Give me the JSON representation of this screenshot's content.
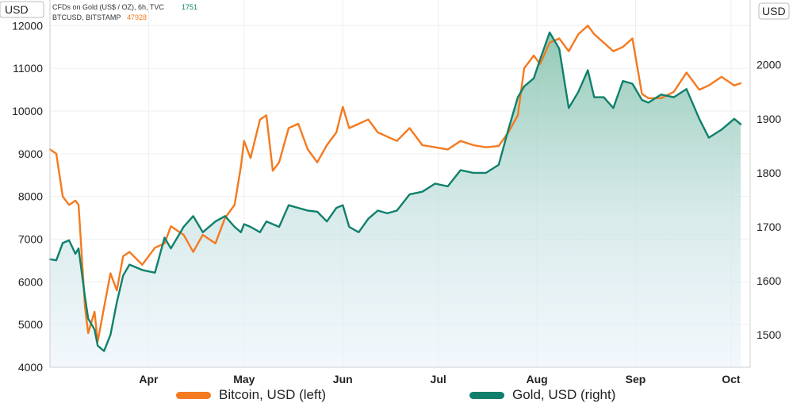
{
  "chart_data": {
    "type": "line",
    "x_unit": "date",
    "left_axis_unit": "USD",
    "right_axis_unit": "USD",
    "left_ylim": [
      4000,
      12600
    ],
    "right_ylim": [
      1440,
      2120
    ],
    "left_ticks": [
      "4000",
      "5000",
      "6000",
      "7000",
      "8000",
      "9000",
      "10000",
      "11000",
      "12000"
    ],
    "right_ticks": [
      "1500",
      "1600",
      "1700",
      "1800",
      "1900",
      "2000"
    ],
    "x_ticks": [
      "Apr",
      "May",
      "Jun",
      "Jul",
      "Aug",
      "Sep",
      "Oct"
    ],
    "header_lines": [
      {
        "label": "CFDs on Gold (US$ / OZ), 6h, TVC",
        "value": "1751"
      },
      {
        "label": "BTCUSD, BITSTAMP",
        "value": "47928"
      }
    ],
    "series": [
      {
        "name": "Bitcoin, USD (left)",
        "axis": "left",
        "color": "#f47a1f",
        "points": [
          [
            "2020-03-01",
            9100
          ],
          [
            "2020-03-03",
            9000
          ],
          [
            "2020-03-05",
            8000
          ],
          [
            "2020-03-07",
            7800
          ],
          [
            "2020-03-09",
            7900
          ],
          [
            "2020-03-10",
            7800
          ],
          [
            "2020-03-12",
            5400
          ],
          [
            "2020-03-13",
            4800
          ],
          [
            "2020-03-15",
            5300
          ],
          [
            "2020-03-16",
            4600
          ],
          [
            "2020-03-18",
            5400
          ],
          [
            "2020-03-20",
            6200
          ],
          [
            "2020-03-22",
            5800
          ],
          [
            "2020-03-24",
            6600
          ],
          [
            "2020-03-26",
            6700
          ],
          [
            "2020-03-30",
            6400
          ],
          [
            "2020-04-03",
            6800
          ],
          [
            "2020-04-06",
            6900
          ],
          [
            "2020-04-08",
            7300
          ],
          [
            "2020-04-12",
            7100
          ],
          [
            "2020-04-15",
            6700
          ],
          [
            "2020-04-18",
            7100
          ],
          [
            "2020-04-22",
            6900
          ],
          [
            "2020-04-25",
            7500
          ],
          [
            "2020-04-28",
            7800
          ],
          [
            "2020-04-30",
            8700
          ],
          [
            "2020-05-01",
            9300
          ],
          [
            "2020-05-03",
            8900
          ],
          [
            "2020-05-06",
            9800
          ],
          [
            "2020-05-08",
            9900
          ],
          [
            "2020-05-10",
            8600
          ],
          [
            "2020-05-12",
            8800
          ],
          [
            "2020-05-15",
            9600
          ],
          [
            "2020-05-18",
            9700
          ],
          [
            "2020-05-21",
            9100
          ],
          [
            "2020-05-24",
            8800
          ],
          [
            "2020-05-27",
            9200
          ],
          [
            "2020-05-30",
            9500
          ],
          [
            "2020-06-01",
            10100
          ],
          [
            "2020-06-03",
            9600
          ],
          [
            "2020-06-06",
            9700
          ],
          [
            "2020-06-09",
            9800
          ],
          [
            "2020-06-12",
            9500
          ],
          [
            "2020-06-15",
            9400
          ],
          [
            "2020-06-18",
            9300
          ],
          [
            "2020-06-22",
            9600
          ],
          [
            "2020-06-26",
            9200
          ],
          [
            "2020-06-30",
            9150
          ],
          [
            "2020-07-04",
            9100
          ],
          [
            "2020-07-08",
            9300
          ],
          [
            "2020-07-12",
            9200
          ],
          [
            "2020-07-16",
            9150
          ],
          [
            "2020-07-20",
            9180
          ],
          [
            "2020-07-23",
            9500
          ],
          [
            "2020-07-26",
            9900
          ],
          [
            "2020-07-28",
            11000
          ],
          [
            "2020-07-31",
            11300
          ],
          [
            "2020-08-02",
            11100
          ],
          [
            "2020-08-05",
            11600
          ],
          [
            "2020-08-08",
            11700
          ],
          [
            "2020-08-11",
            11400
          ],
          [
            "2020-08-14",
            11800
          ],
          [
            "2020-08-17",
            12000
          ],
          [
            "2020-08-19",
            11800
          ],
          [
            "2020-08-22",
            11600
          ],
          [
            "2020-08-25",
            11400
          ],
          [
            "2020-08-28",
            11500
          ],
          [
            "2020-08-31",
            11700
          ],
          [
            "2020-09-03",
            10400
          ],
          [
            "2020-09-05",
            10300
          ],
          [
            "2020-09-09",
            10300
          ],
          [
            "2020-09-13",
            10450
          ],
          [
            "2020-09-17",
            10900
          ],
          [
            "2020-09-21",
            10500
          ],
          [
            "2020-09-24",
            10600
          ],
          [
            "2020-09-28",
            10800
          ],
          [
            "2020-10-02",
            10600
          ],
          [
            "2020-10-04",
            10650
          ]
        ]
      },
      {
        "name": "Gold, USD (right)",
        "axis": "right",
        "color": "#10806c",
        "points": [
          [
            "2020-03-01",
            1640
          ],
          [
            "2020-03-03",
            1638
          ],
          [
            "2020-03-05",
            1670
          ],
          [
            "2020-03-07",
            1675
          ],
          [
            "2020-03-09",
            1650
          ],
          [
            "2020-03-10",
            1660
          ],
          [
            "2020-03-12",
            1570
          ],
          [
            "2020-03-13",
            1530
          ],
          [
            "2020-03-15",
            1510
          ],
          [
            "2020-03-16",
            1480
          ],
          [
            "2020-03-18",
            1470
          ],
          [
            "2020-03-20",
            1500
          ],
          [
            "2020-03-22",
            1560
          ],
          [
            "2020-03-24",
            1610
          ],
          [
            "2020-03-26",
            1630
          ],
          [
            "2020-03-30",
            1620
          ],
          [
            "2020-04-03",
            1615
          ],
          [
            "2020-04-06",
            1680
          ],
          [
            "2020-04-08",
            1660
          ],
          [
            "2020-04-12",
            1700
          ],
          [
            "2020-04-15",
            1720
          ],
          [
            "2020-04-18",
            1690
          ],
          [
            "2020-04-22",
            1710
          ],
          [
            "2020-04-25",
            1720
          ],
          [
            "2020-04-28",
            1700
          ],
          [
            "2020-04-30",
            1690
          ],
          [
            "2020-05-01",
            1705
          ],
          [
            "2020-05-03",
            1700
          ],
          [
            "2020-05-06",
            1690
          ],
          [
            "2020-05-08",
            1710
          ],
          [
            "2020-05-10",
            1705
          ],
          [
            "2020-05-12",
            1700
          ],
          [
            "2020-05-15",
            1740
          ],
          [
            "2020-05-18",
            1735
          ],
          [
            "2020-05-21",
            1730
          ],
          [
            "2020-05-24",
            1728
          ],
          [
            "2020-05-27",
            1710
          ],
          [
            "2020-05-30",
            1735
          ],
          [
            "2020-06-01",
            1740
          ],
          [
            "2020-06-03",
            1700
          ],
          [
            "2020-06-06",
            1690
          ],
          [
            "2020-06-09",
            1715
          ],
          [
            "2020-06-12",
            1730
          ],
          [
            "2020-06-15",
            1725
          ],
          [
            "2020-06-18",
            1730
          ],
          [
            "2020-06-22",
            1760
          ],
          [
            "2020-06-26",
            1765
          ],
          [
            "2020-06-30",
            1780
          ],
          [
            "2020-07-04",
            1775
          ],
          [
            "2020-07-08",
            1805
          ],
          [
            "2020-07-12",
            1800
          ],
          [
            "2020-07-16",
            1800
          ],
          [
            "2020-07-20",
            1815
          ],
          [
            "2020-07-23",
            1880
          ],
          [
            "2020-07-26",
            1940
          ],
          [
            "2020-07-28",
            1960
          ],
          [
            "2020-07-31",
            1975
          ],
          [
            "2020-08-02",
            2010
          ],
          [
            "2020-08-05",
            2060
          ],
          [
            "2020-08-08",
            2030
          ],
          [
            "2020-08-11",
            1920
          ],
          [
            "2020-08-14",
            1950
          ],
          [
            "2020-08-17",
            1990
          ],
          [
            "2020-08-19",
            1940
          ],
          [
            "2020-08-22",
            1940
          ],
          [
            "2020-08-25",
            1920
          ],
          [
            "2020-08-28",
            1970
          ],
          [
            "2020-08-31",
            1965
          ],
          [
            "2020-09-03",
            1935
          ],
          [
            "2020-09-05",
            1930
          ],
          [
            "2020-09-09",
            1945
          ],
          [
            "2020-09-13",
            1940
          ],
          [
            "2020-09-17",
            1955
          ],
          [
            "2020-09-21",
            1900
          ],
          [
            "2020-09-24",
            1865
          ],
          [
            "2020-09-28",
            1880
          ],
          [
            "2020-10-02",
            1900
          ],
          [
            "2020-10-04",
            1890
          ]
        ]
      }
    ]
  },
  "legend": [
    {
      "label": "Bitcoin, USD (left)",
      "color": "#f47a1f"
    },
    {
      "label": "Gold, USD (right)",
      "color": "#10806c"
    }
  ]
}
